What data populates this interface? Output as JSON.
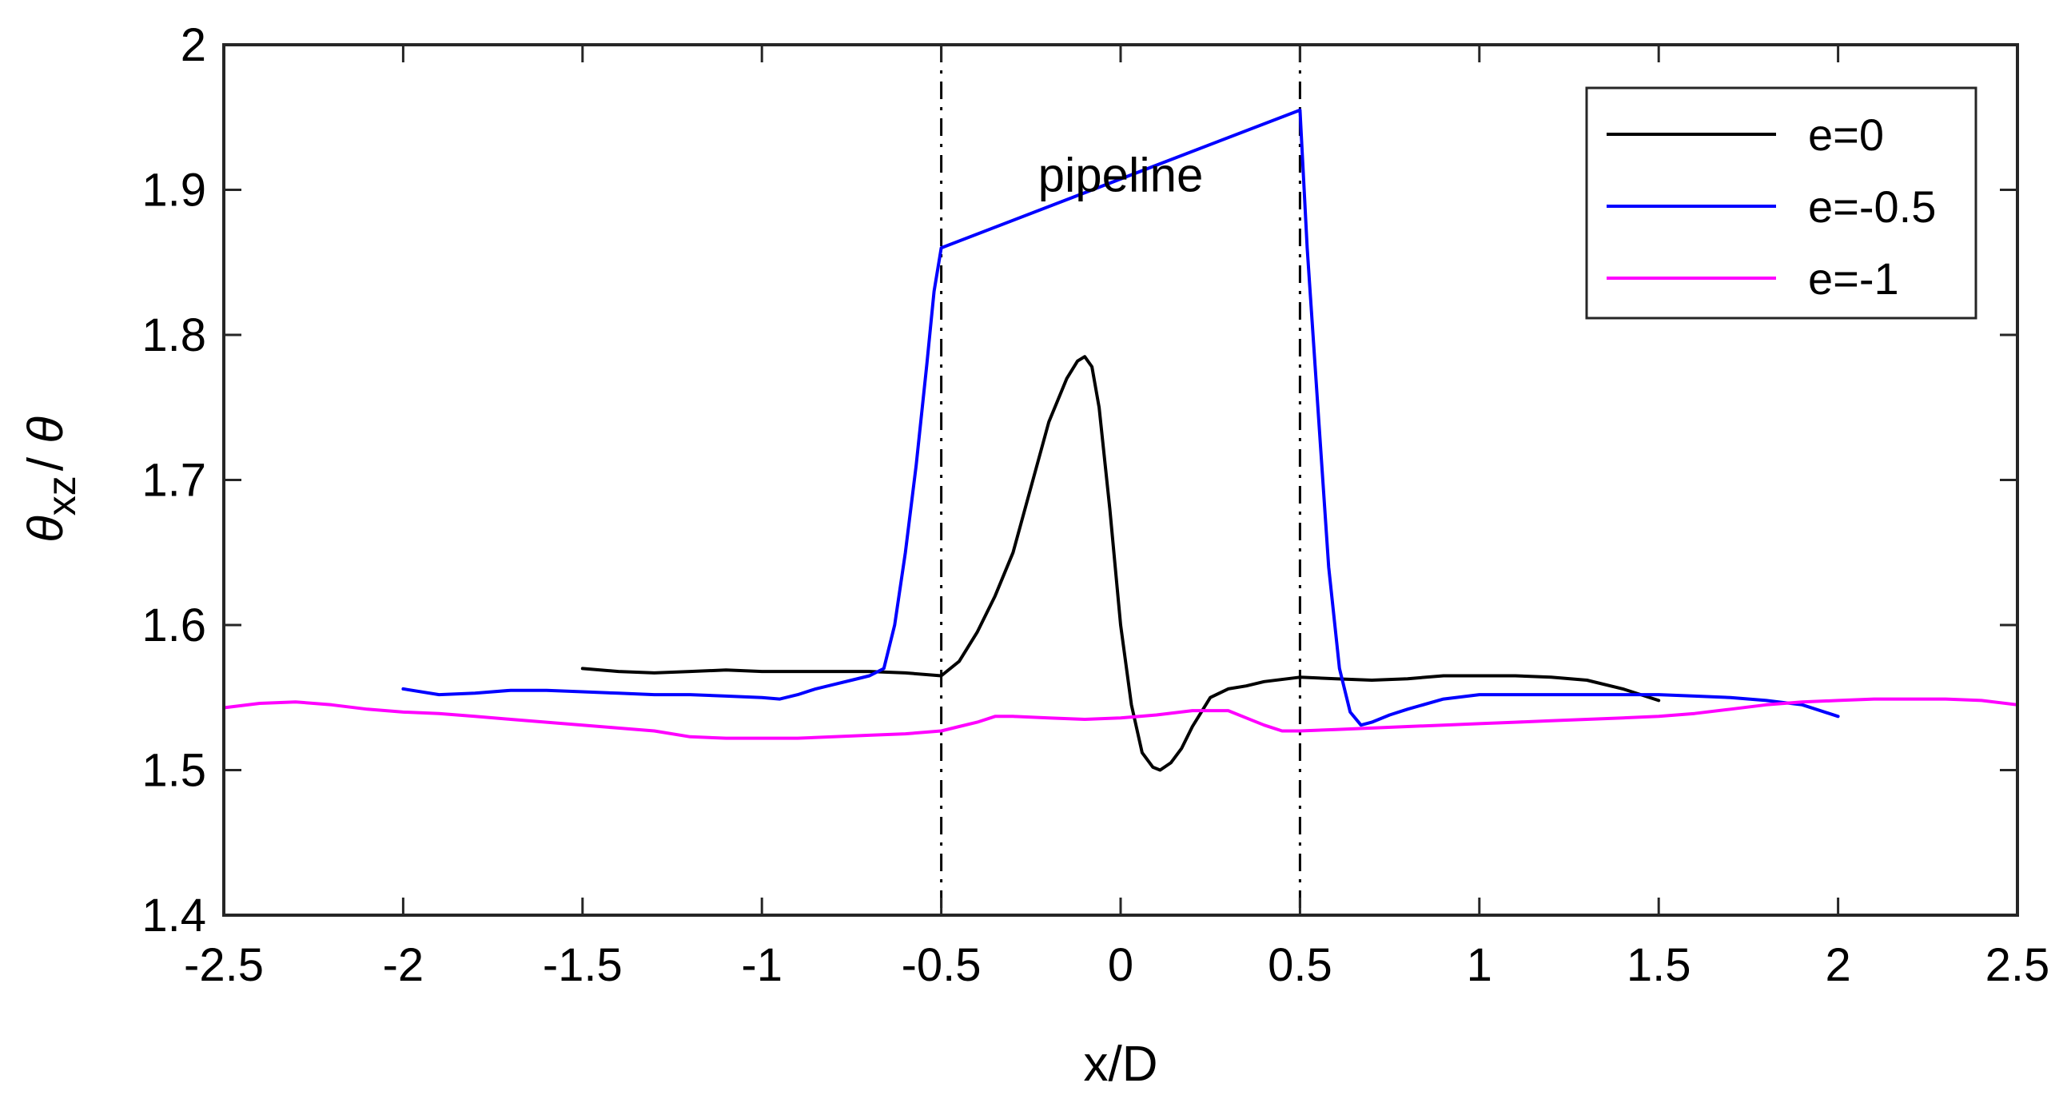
{
  "chart_data": {
    "type": "line",
    "xlabel": "x/D",
    "ylabel": {
      "theta": "θ",
      "subscript": "xz",
      "separator": "/ ",
      "theta2": "θ"
    },
    "xlim": [
      -2.5,
      2.5
    ],
    "ylim": [
      1.4,
      2.0
    ],
    "xticks": [
      -2.5,
      -2,
      -1.5,
      -1,
      -0.5,
      0,
      0.5,
      1,
      1.5,
      2,
      2.5
    ],
    "xtick_labels": [
      "-2.5",
      "-2",
      "-1.5",
      "-1",
      "-0.5",
      "0",
      "0.5",
      "1",
      "1.5",
      "2",
      "2.5"
    ],
    "yticks": [
      1.4,
      1.5,
      1.6,
      1.7,
      1.8,
      1.9,
      2.0
    ],
    "ytick_labels": [
      "1.4",
      "1.5",
      "1.6",
      "1.7",
      "1.8",
      "1.9",
      "2"
    ],
    "grid": false,
    "legend_position": "top-right",
    "annotation": {
      "text": "pipeline",
      "x": 0.0,
      "y": 1.91
    },
    "vlines": [
      -0.5,
      0.5
    ],
    "series": [
      {
        "name": "e=0",
        "color": "#000000",
        "x": [
          -1.5,
          -1.4,
          -1.3,
          -1.2,
          -1.1,
          -1.0,
          -0.9,
          -0.8,
          -0.7,
          -0.6,
          -0.5,
          -0.45,
          -0.4,
          -0.35,
          -0.3,
          -0.25,
          -0.2,
          -0.15,
          -0.12,
          -0.1,
          -0.08,
          -0.06,
          -0.03,
          0.0,
          0.03,
          0.06,
          0.09,
          0.11,
          0.14,
          0.17,
          0.2,
          0.25,
          0.3,
          0.35,
          0.4,
          0.5,
          0.6,
          0.7,
          0.8,
          0.9,
          1.0,
          1.1,
          1.2,
          1.3,
          1.4,
          1.5
        ],
        "y": [
          1.57,
          1.568,
          1.567,
          1.568,
          1.569,
          1.568,
          1.568,
          1.568,
          1.568,
          1.567,
          1.565,
          1.575,
          1.595,
          1.62,
          1.65,
          1.695,
          1.74,
          1.77,
          1.782,
          1.785,
          1.778,
          1.75,
          1.68,
          1.6,
          1.545,
          1.512,
          1.502,
          1.5,
          1.505,
          1.515,
          1.53,
          1.55,
          1.556,
          1.558,
          1.561,
          1.564,
          1.563,
          1.562,
          1.563,
          1.565,
          1.565,
          1.565,
          1.564,
          1.562,
          1.556,
          1.548
        ]
      },
      {
        "name": "e=-0.5",
        "color": "#0000ff",
        "x": [
          -2.0,
          -1.9,
          -1.8,
          -1.7,
          -1.6,
          -1.5,
          -1.4,
          -1.3,
          -1.2,
          -1.1,
          -1.0,
          -0.95,
          -0.9,
          -0.85,
          -0.8,
          -0.75,
          -0.7,
          -0.66,
          -0.63,
          -0.6,
          -0.57,
          -0.54,
          -0.52,
          -0.5,
          0.5,
          0.52,
          0.55,
          0.58,
          0.61,
          0.64,
          0.67,
          0.7,
          0.75,
          0.8,
          0.9,
          1.0,
          1.1,
          1.2,
          1.3,
          1.4,
          1.5,
          1.6,
          1.7,
          1.8,
          1.9,
          2.0
        ],
        "y": [
          1.556,
          1.552,
          1.553,
          1.555,
          1.555,
          1.554,
          1.553,
          1.552,
          1.552,
          1.551,
          1.55,
          1.549,
          1.552,
          1.556,
          1.559,
          1.562,
          1.565,
          1.57,
          1.6,
          1.65,
          1.71,
          1.78,
          1.83,
          1.86,
          1.955,
          1.86,
          1.75,
          1.64,
          1.57,
          1.54,
          1.531,
          1.533,
          1.538,
          1.542,
          1.549,
          1.552,
          1.552,
          1.552,
          1.552,
          1.552,
          1.552,
          1.551,
          1.55,
          1.548,
          1.545,
          1.537
        ]
      },
      {
        "name": "e=-1",
        "color": "#ff00ff",
        "x": [
          -2.5,
          -2.4,
          -2.3,
          -2.2,
          -2.1,
          -2.0,
          -1.9,
          -1.8,
          -1.7,
          -1.6,
          -1.5,
          -1.4,
          -1.3,
          -1.2,
          -1.1,
          -1.0,
          -0.9,
          -0.8,
          -0.7,
          -0.6,
          -0.5,
          -0.45,
          -0.4,
          -0.35,
          -0.3,
          -0.2,
          -0.1,
          0.0,
          0.1,
          0.2,
          0.3,
          0.35,
          0.4,
          0.45,
          0.5,
          0.6,
          0.7,
          0.8,
          0.9,
          1.0,
          1.1,
          1.2,
          1.3,
          1.4,
          1.5,
          1.6,
          1.7,
          1.8,
          1.9,
          2.0,
          2.1,
          2.2,
          2.3,
          2.4,
          2.5
        ],
        "y": [
          1.543,
          1.546,
          1.547,
          1.545,
          1.542,
          1.54,
          1.539,
          1.537,
          1.535,
          1.533,
          1.531,
          1.529,
          1.527,
          1.523,
          1.522,
          1.522,
          1.522,
          1.523,
          1.524,
          1.525,
          1.527,
          1.53,
          1.533,
          1.537,
          1.537,
          1.536,
          1.535,
          1.536,
          1.538,
          1.541,
          1.541,
          1.536,
          1.531,
          1.527,
          1.527,
          1.528,
          1.529,
          1.53,
          1.531,
          1.532,
          1.533,
          1.534,
          1.535,
          1.536,
          1.537,
          1.539,
          1.542,
          1.545,
          1.547,
          1.548,
          1.549,
          1.549,
          1.549,
          1.548,
          1.545
        ]
      }
    ]
  }
}
